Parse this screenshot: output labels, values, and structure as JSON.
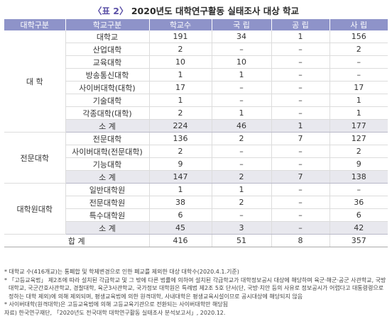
{
  "title": {
    "prefix": "〈표 2〉",
    "text": "2020년도 대학연구활동 실태조사 대상 학교"
  },
  "header": [
    "대학구분",
    "학교구분",
    "학교수",
    "국 립",
    "공 립",
    "사 립"
  ],
  "groups": [
    {
      "label": "대 학",
      "rows": [
        [
          "대학교",
          "191",
          "34",
          "1",
          "156"
        ],
        [
          "산업대학",
          "2",
          "–",
          "–",
          "2"
        ],
        [
          "교육대학",
          "10",
          "10",
          "–",
          "–"
        ],
        [
          "방송통신대학",
          "1",
          "1",
          "–",
          "–"
        ],
        [
          "사이버대학(대학)",
          "17",
          "–",
          "–",
          "17"
        ],
        [
          "기술대학",
          "1",
          "–",
          "–",
          "1"
        ],
        [
          "각종대학(대학)",
          "2",
          "1",
          "–",
          "1"
        ]
      ],
      "subtotal": [
        "소 계",
        "224",
        "46",
        "1",
        "177"
      ]
    },
    {
      "label": "전문대학",
      "rows": [
        [
          "전문대학",
          "136",
          "2",
          "7",
          "127"
        ],
        [
          "사이버대학(전문대학)",
          "2",
          "–",
          "–",
          "2"
        ],
        [
          "기능대학",
          "9",
          "–",
          "–",
          "9"
        ]
      ],
      "subtotal": [
        "소 계",
        "147",
        "2",
        "7",
        "138"
      ]
    },
    {
      "label": "대학원대학",
      "rows": [
        [
          "일반대학원",
          "1",
          "1",
          "–",
          "–"
        ],
        [
          "전문대학원",
          "38",
          "2",
          "–",
          "36"
        ],
        [
          "특수대학원",
          "6",
          "–",
          "–",
          "6"
        ]
      ],
      "subtotal": [
        "소 계",
        "45",
        "3",
        "–",
        "42"
      ]
    }
  ],
  "grand_total": [
    "합 계",
    "416",
    "51",
    "8",
    "357"
  ],
  "notes": [
    "* 대학교 수(416개교)는 통폐합 및 학제변경으로 인한 폐교를 제외한 대상 대학수(2020.4.1.기준)",
    "* 「고등교육법」 제2조에 따라 설치된 각급학교 및 그 밖에 다른 법률에 의하여 설치된 각급학교가 대학정보공시 대상에 해당하며 육군·해군·공군 사관학교, 국방",
    "대학교, 국군간호사관학교, 경찰대학, 육군3사관학교, 국가정보 대학원은 특례법 제2조 5호 단서(단, 국방·치안 등의 사유로 정보공시가 어렵다고 대통령령으로",
    "정하는 대학 제외)에 의해 제외되며, 평생교육법에 의한 원격대학, 사내대학은 평생교육시설이므로 공시대상에 해당되지 않음",
    "* 사이버대학(원격대학)은 고등교육법에 의해 고등교육기관으로 전환되는 사이버대학만 해당됨",
    "자료) 한국연구재단, 「2020년도 전국대학 대학연구활동 실태조사 분석보고서」, 2020.12."
  ]
}
